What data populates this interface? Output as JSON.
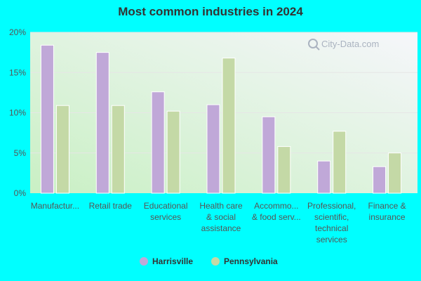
{
  "chart_data": {
    "type": "bar",
    "title": "Most common industries in 2024",
    "categories": [
      [
        "Manufactur..."
      ],
      [
        "Retail trade"
      ],
      [
        "Educational",
        "services"
      ],
      [
        "Health care",
        "& social",
        "assistance"
      ],
      [
        "Accommo...",
        "& food serv..."
      ],
      [
        "Professional,",
        "scientific,",
        "technical",
        "services"
      ],
      [
        "Finance &",
        "insurance"
      ]
    ],
    "series": [
      {
        "name": "Harrisville",
        "color": "#c0a8d8",
        "values": [
          18.4,
          17.5,
          12.6,
          11.0,
          9.5,
          4.0,
          3.3
        ]
      },
      {
        "name": "Pennsylvania",
        "color": "#c4d9a6",
        "values": [
          10.9,
          10.9,
          10.2,
          16.8,
          5.8,
          7.7,
          5.0
        ]
      }
    ],
    "ylim": [
      0,
      20
    ],
    "yticks": [
      0,
      5,
      10,
      15,
      20
    ],
    "ytick_labels": [
      "0%",
      "5%",
      "10%",
      "15%",
      "20%"
    ],
    "grid": true,
    "legend": "bottom",
    "watermark": "City-Data.com"
  }
}
